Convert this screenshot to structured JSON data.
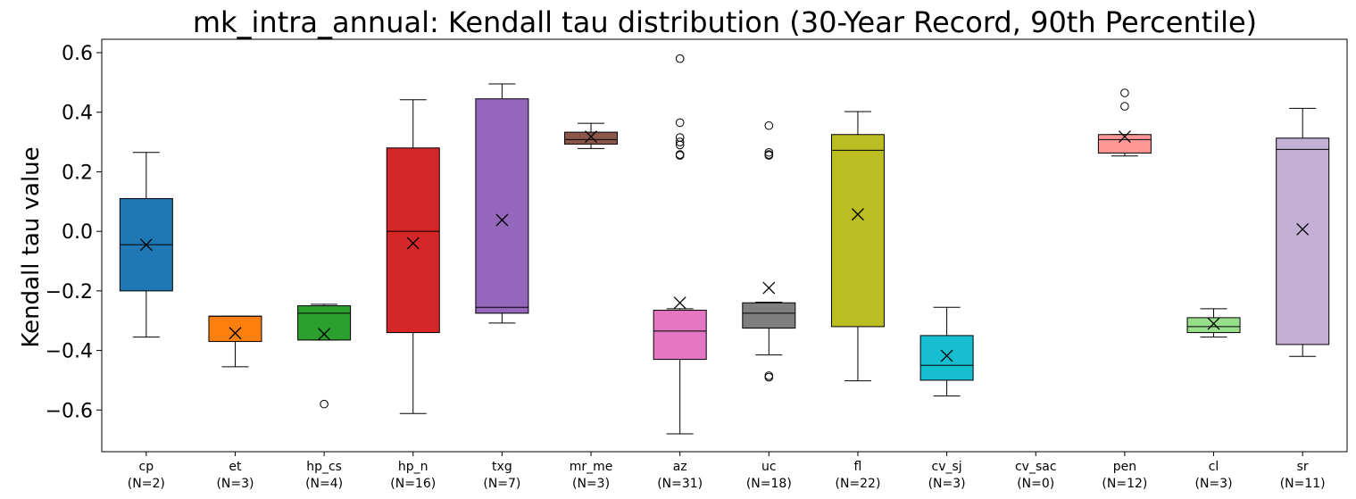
{
  "chart_data": {
    "type": "box",
    "title": "mk_intra_annual: Kendall tau distribution (30-Year Record, 90th Percentile)",
    "xlabel": "",
    "ylabel": "Kendall tau value",
    "ylim": [
      -0.74,
      0.645
    ],
    "yticks": [
      -0.6,
      -0.4,
      -0.2,
      0.0,
      0.2,
      0.4,
      0.6
    ],
    "ytick_labels": [
      "−0.6",
      "−0.4",
      "−0.2",
      "0.0",
      "0.2",
      "0.4",
      "0.6"
    ],
    "grid": false,
    "mean_marker": "x",
    "categories": [
      {
        "name": "cp",
        "n_label": "(N=2)",
        "color": "#1f77b4",
        "whisker_low": -0.355,
        "q1": -0.2,
        "median": -0.045,
        "q3": 0.11,
        "whisker_high": 0.265,
        "mean": -0.045,
        "outliers": []
      },
      {
        "name": "et",
        "n_label": "(N=3)",
        "color": "#ff7f0e",
        "whisker_low": -0.455,
        "q1": -0.37,
        "median": -0.285,
        "q3": -0.285,
        "whisker_high": -0.285,
        "mean": -0.342,
        "outliers": []
      },
      {
        "name": "hp_cs",
        "n_label": "(N=4)",
        "color": "#2ca02c",
        "whisker_low": -0.365,
        "q1": -0.365,
        "median": -0.275,
        "q3": -0.25,
        "whisker_high": -0.245,
        "mean": -0.345,
        "outliers": [
          -0.58
        ]
      },
      {
        "name": "hp_n",
        "n_label": "(N=16)",
        "color": "#d62728",
        "whisker_low": -0.612,
        "q1": -0.34,
        "median": 0.0,
        "q3": 0.28,
        "whisker_high": 0.442,
        "mean": -0.04,
        "outliers": []
      },
      {
        "name": "txg",
        "n_label": "(N=7)",
        "color": "#9467bd",
        "whisker_low": -0.308,
        "q1": -0.275,
        "median": -0.255,
        "q3": 0.445,
        "whisker_high": 0.495,
        "mean": 0.038,
        "outliers": []
      },
      {
        "name": "mr_me",
        "n_label": "(N=3)",
        "color": "#8c564b",
        "whisker_low": 0.278,
        "q1": 0.293,
        "median": 0.308,
        "q3": 0.333,
        "whisker_high": 0.363,
        "mean": 0.318,
        "outliers": []
      },
      {
        "name": "az",
        "n_label": "(N=31)",
        "color": "#e377c2",
        "whisker_low": -0.68,
        "q1": -0.43,
        "median": -0.335,
        "q3": -0.265,
        "whisker_high": -0.26,
        "mean": -0.24,
        "outliers": [
          0.58,
          0.365,
          0.315,
          0.3,
          0.29,
          0.258,
          0.255
        ]
      },
      {
        "name": "uc",
        "n_label": "(N=18)",
        "color": "#7f7f7f",
        "whisker_low": -0.415,
        "q1": -0.325,
        "median": -0.275,
        "q3": -0.24,
        "whisker_high": -0.238,
        "mean": -0.19,
        "outliers": [
          0.355,
          0.265,
          0.258,
          0.255,
          -0.485,
          -0.49
        ]
      },
      {
        "name": "fl",
        "n_label": "(N=22)",
        "color": "#bcbd22",
        "whisker_low": -0.502,
        "q1": -0.32,
        "median": 0.272,
        "q3": 0.325,
        "whisker_high": 0.402,
        "mean": 0.057,
        "outliers": []
      },
      {
        "name": "cv_sj",
        "n_label": "(N=3)",
        "color": "#17becf",
        "whisker_low": -0.553,
        "q1": -0.5,
        "median": -0.45,
        "q3": -0.35,
        "whisker_high": -0.255,
        "mean": -0.418,
        "outliers": []
      },
      {
        "name": "cv_sac",
        "n_label": "(N=0)",
        "color": "#aec7e8",
        "empty": true,
        "outliers": []
      },
      {
        "name": "pen",
        "n_label": "(N=12)",
        "color": "#ff9896",
        "whisker_low": 0.253,
        "q1": 0.263,
        "median": 0.308,
        "q3": 0.325,
        "whisker_high": 0.325,
        "mean": 0.318,
        "outliers": [
          0.465,
          0.42
        ]
      },
      {
        "name": "cl",
        "n_label": "(N=3)",
        "color": "#98df8a",
        "whisker_low": -0.355,
        "q1": -0.34,
        "median": -0.32,
        "q3": -0.29,
        "whisker_high": -0.26,
        "mean": -0.31,
        "outliers": []
      },
      {
        "name": "sr",
        "n_label": "(N=11)",
        "color": "#c5b0d5",
        "whisker_low": -0.42,
        "q1": -0.38,
        "median": 0.275,
        "q3": 0.313,
        "whisker_high": 0.413,
        "mean": 0.007,
        "outliers": []
      }
    ]
  }
}
